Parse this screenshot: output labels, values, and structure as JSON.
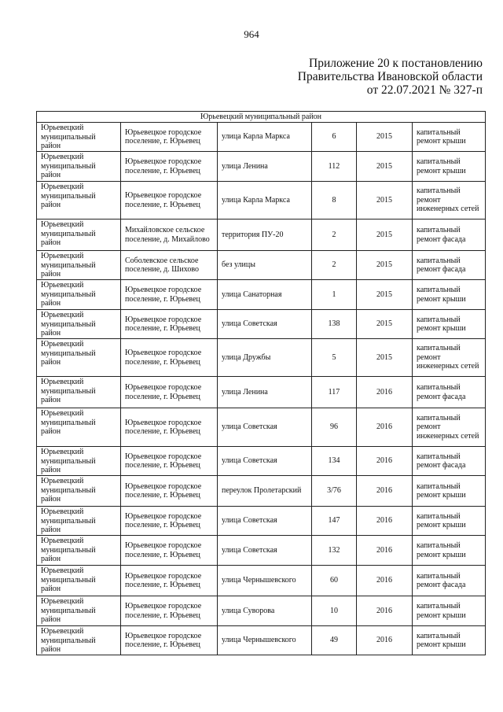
{
  "page_number": "964",
  "header": {
    "line1": "Приложение 20 к постановлению",
    "line2": "Правительства Ивановской области",
    "line3": "от 22.07.2021 № 327-п"
  },
  "table": {
    "section_title": "Юрьевецкий муниципальный район",
    "rows": [
      [
        "Юрьевецкий муниципальный район",
        "Юрьевецкое городское поселение, г. Юрьевец",
        "улица Карла Маркса",
        "6",
        "2015",
        "капитальный ремонт крыши"
      ],
      [
        "Юрьевецкий муниципальный район",
        "Юрьевецкое городское поселение, г. Юрьевец",
        "улица Ленина",
        "112",
        "2015",
        "капитальный ремонт крыши"
      ],
      [
        "Юрьевецкий муниципальный район",
        "Юрьевецкое городское поселение, г. Юрьевец",
        "улица Карла Маркса",
        "8",
        "2015",
        "капитальный ремонт инженерных сетей"
      ],
      [
        "Юрьевецкий муниципальный район",
        "Михайловское сельское поселение, д. Михайлово",
        "территория ПУ-20",
        "2",
        "2015",
        "капитальный ремонт фасада"
      ],
      [
        "Юрьевецкий муниципальный район",
        "Соболевское сельское поселение, д. Шихово",
        "без улицы",
        "2",
        "2015",
        "капитальный ремонт фасада"
      ],
      [
        "Юрьевецкий муниципальный район",
        "Юрьевецкое городское поселение, г. Юрьевец",
        "улица Санаторная",
        "1",
        "2015",
        "капитальный ремонт крыши"
      ],
      [
        "Юрьевецкий муниципальный район",
        "Юрьевецкое городское поселение, г. Юрьевец",
        "улица Советская",
        "138",
        "2015",
        "капитальный ремонт крыши"
      ],
      [
        "Юрьевецкий муниципальный район",
        "Юрьевецкое городское поселение, г. Юрьевец",
        "улица Дружбы",
        "5",
        "2015",
        "капитальный ремонт инженерных сетей"
      ],
      [
        "Юрьевецкий муниципальный район",
        "Юрьевецкое городское поселение, г. Юрьевец",
        "улица Ленина",
        "117",
        "2016",
        "капитальный ремонт фасада"
      ],
      [
        "Юрьевецкий муниципальный район",
        "Юрьевецкое городское поселение, г. Юрьевец",
        "улица Советская",
        "96",
        "2016",
        "капитальный ремонт инженерных сетей"
      ],
      [
        "Юрьевецкий муниципальный район",
        "Юрьевецкое городское поселение, г. Юрьевец",
        "улица Советская",
        "134",
        "2016",
        "капитальный ремонт фасада"
      ],
      [
        "Юрьевецкий муниципальный район",
        "Юрьевецкое городское поселение, г. Юрьевец",
        "переулок Пролетарский",
        "3/76",
        "2016",
        "капитальный ремонт крыши"
      ],
      [
        "Юрьевецкий муниципальный район",
        "Юрьевецкое городское поселение, г. Юрьевец",
        "улица Советская",
        "147",
        "2016",
        "капитальный ремонт крыши"
      ],
      [
        "Юрьевецкий муниципальный район",
        "Юрьевецкое городское поселение, г. Юрьевец",
        "улица Советская",
        "132",
        "2016",
        "капитальный ремонт крыши"
      ],
      [
        "Юрьевецкий муниципальный район",
        "Юрьевецкое городское поселение, г. Юрьевец",
        "улица Чернышевского",
        "60",
        "2016",
        "капитальный ремонт фасада"
      ],
      [
        "Юрьевецкий муниципальный район",
        "Юрьевецкое городское поселение, г. Юрьевец",
        "улица Суворова",
        "10",
        "2016",
        "капитальный ремонт крыши"
      ],
      [
        "Юрьевецкий муниципальный район",
        "Юрьевецкое городское поселение, г. Юрьевец",
        "улица Чернышевского",
        "49",
        "2016",
        "капитальный ремонт крыши"
      ]
    ]
  }
}
